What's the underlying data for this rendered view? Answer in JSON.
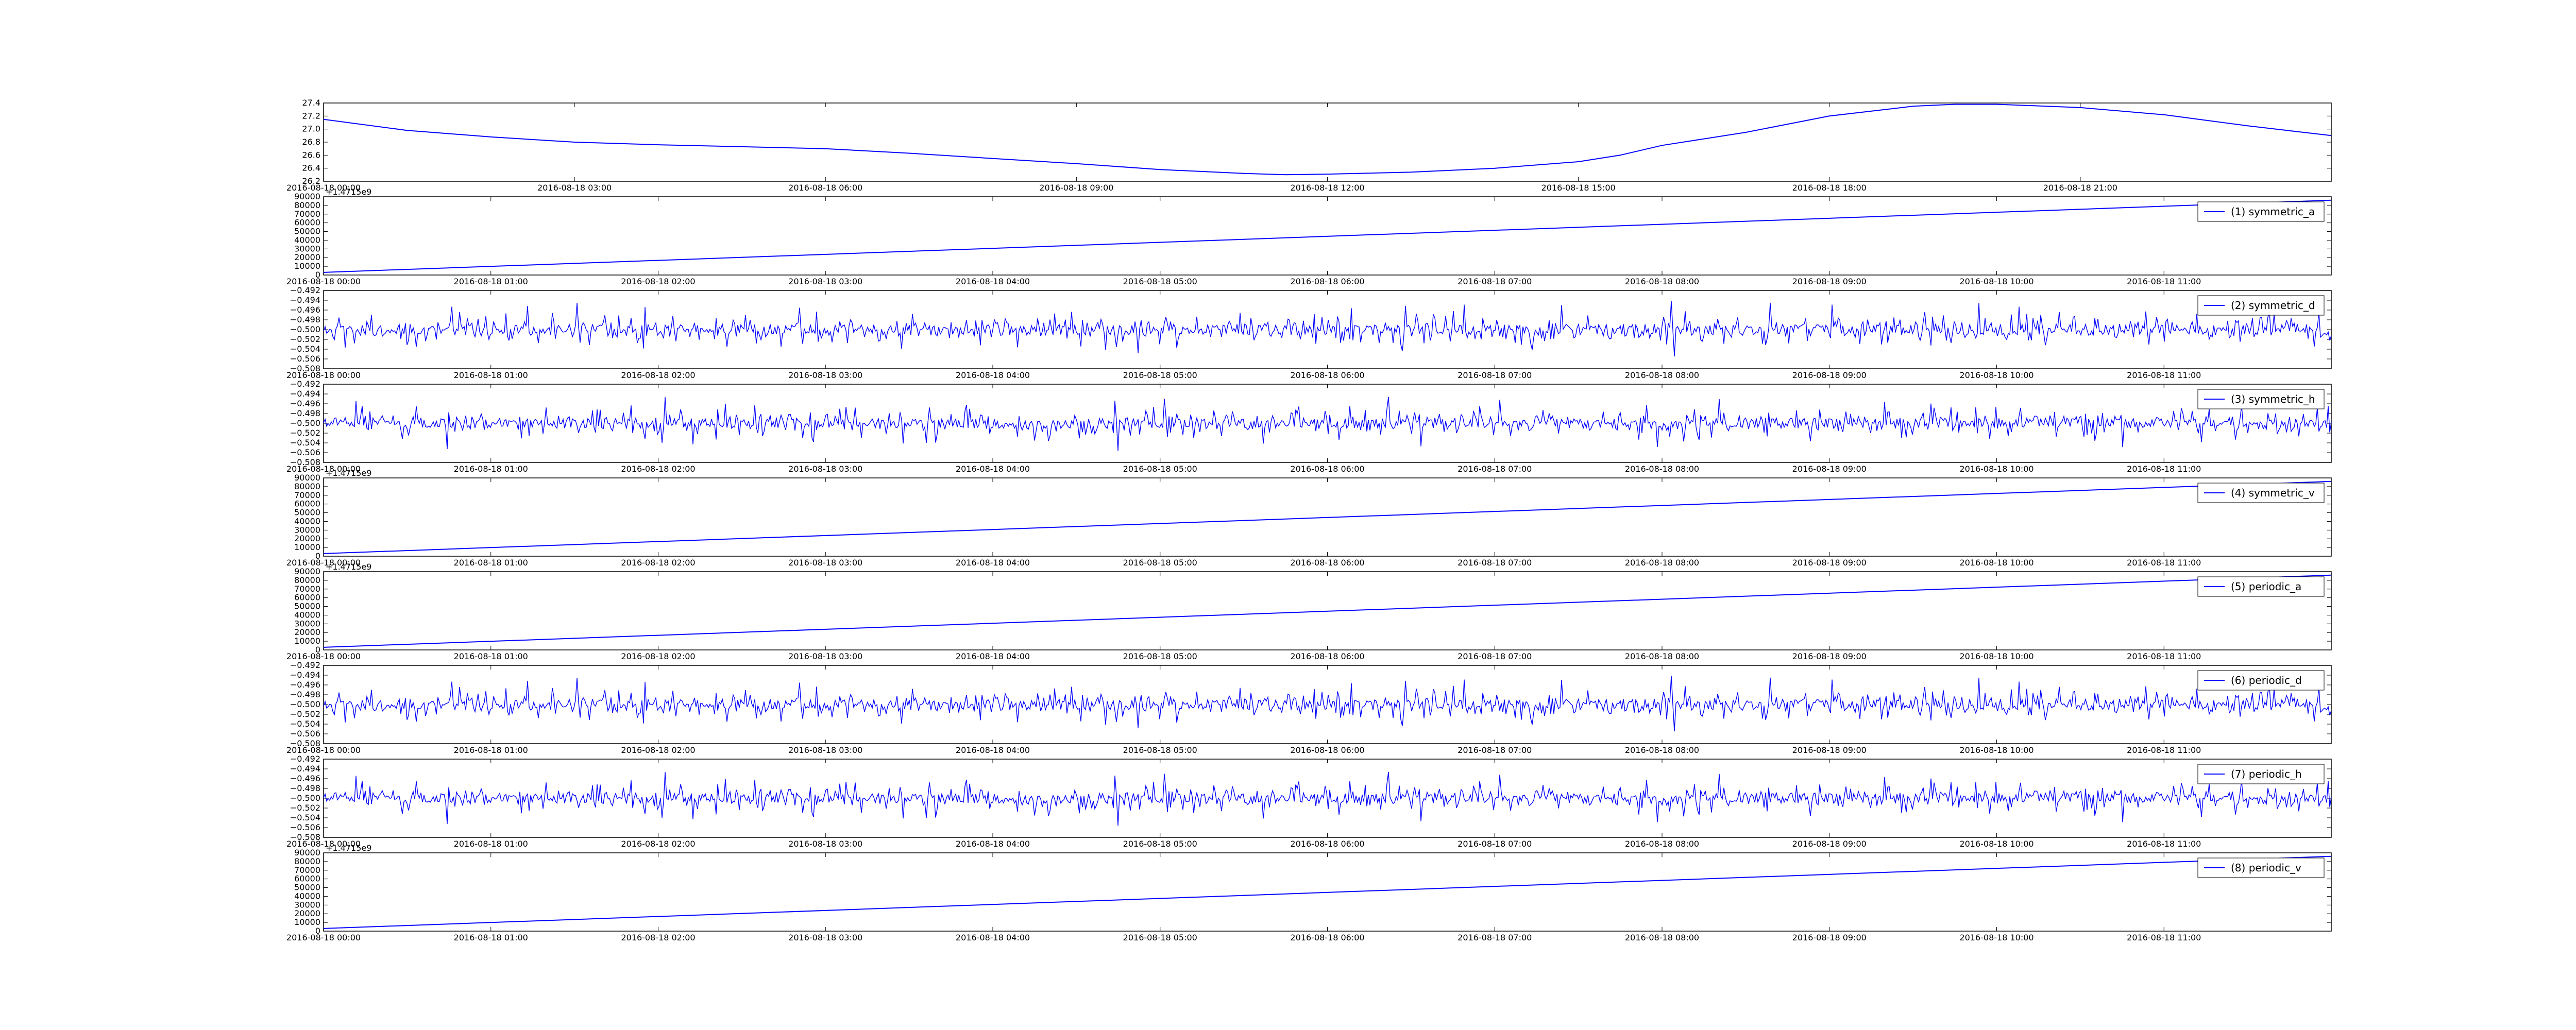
{
  "figure": {
    "background": "#ffffff",
    "line_color": "#0000ff"
  },
  "chart_data": [
    {
      "id": "temp",
      "type": "line",
      "legend": "",
      "ylim": [
        26.2,
        27.4
      ],
      "yticks": [
        "26.2",
        "26.4",
        "26.6",
        "26.8",
        "27.0",
        "27.2",
        "27.4"
      ],
      "offset_label": "",
      "xticks": [
        "2016-08-18 00:00",
        "2016-08-18 03:00",
        "2016-08-18 06:00",
        "2016-08-18 09:00",
        "2016-08-18 12:00",
        "2016-08-18 15:00",
        "2016-08-18 18:00",
        "2016-08-18 21:00"
      ],
      "xrange_hours": [
        0,
        24
      ],
      "series": [
        {
          "x": [
            0,
            1,
            2,
            3,
            4,
            5,
            6,
            7,
            8,
            9,
            10,
            11,
            11.5,
            12,
            13,
            14,
            15,
            15.5,
            16,
            17,
            18,
            19,
            19.5,
            20,
            21,
            22,
            23,
            24
          ],
          "y": [
            27.15,
            26.98,
            26.88,
            26.8,
            26.76,
            26.73,
            26.7,
            26.63,
            26.55,
            26.47,
            26.38,
            26.32,
            26.3,
            26.31,
            26.34,
            26.4,
            26.5,
            26.6,
            26.75,
            26.95,
            27.2,
            27.35,
            27.38,
            27.38,
            27.33,
            27.22,
            27.05,
            26.9
          ]
        }
      ]
    },
    {
      "id": "sym_a",
      "type": "line",
      "legend": "(1) symmetric_a",
      "ylim": [
        0,
        90000
      ],
      "yticks": [
        "0",
        "10000",
        "20000",
        "30000",
        "40000",
        "50000",
        "60000",
        "70000",
        "80000",
        "90000"
      ],
      "offset_label": "+1.4715e9",
      "xticks": [
        "2016-08-18 00:00",
        "2016-08-18 01:00",
        "2016-08-18 02:00",
        "2016-08-18 03:00",
        "2016-08-18 04:00",
        "2016-08-18 05:00",
        "2016-08-18 06:00",
        "2016-08-18 07:00",
        "2016-08-18 08:00",
        "2016-08-18 09:00",
        "2016-08-18 10:00",
        "2016-08-18 11:00"
      ],
      "xrange_hours": [
        0,
        12
      ],
      "series": [
        {
          "x": [
            0,
            12
          ],
          "y": [
            3000,
            86000
          ]
        }
      ]
    },
    {
      "id": "sym_d",
      "type": "line",
      "legend": "(2) symmetric_d",
      "ylim": [
        -0.508,
        -0.492
      ],
      "yticks": [
        "−0.508",
        "−0.506",
        "−0.504",
        "−0.502",
        "−0.500",
        "−0.498",
        "−0.496",
        "−0.494",
        "−0.492"
      ],
      "offset_label": "",
      "xticks": [
        "2016-08-18 00:00",
        "2016-08-18 01:00",
        "2016-08-18 02:00",
        "2016-08-18 03:00",
        "2016-08-18 04:00",
        "2016-08-18 05:00",
        "2016-08-18 06:00",
        "2016-08-18 07:00",
        "2016-08-18 08:00",
        "2016-08-18 09:00",
        "2016-08-18 10:00",
        "2016-08-18 11:00"
      ],
      "xrange_hours": [
        0,
        12
      ],
      "noise": {
        "center": -0.5,
        "amplitude": 0.006,
        "seed": 11,
        "points": 1300
      }
    },
    {
      "id": "sym_h",
      "type": "line",
      "legend": "(3) symmetric_h",
      "ylim": [
        -0.508,
        -0.492
      ],
      "yticks": [
        "−0.508",
        "−0.506",
        "−0.504",
        "−0.502",
        "−0.500",
        "−0.498",
        "−0.496",
        "−0.494",
        "−0.492"
      ],
      "offset_label": "",
      "xticks": [
        "2016-08-18 00:00",
        "2016-08-18 01:00",
        "2016-08-18 02:00",
        "2016-08-18 03:00",
        "2016-08-18 04:00",
        "2016-08-18 05:00",
        "2016-08-18 06:00",
        "2016-08-18 07:00",
        "2016-08-18 08:00",
        "2016-08-18 09:00",
        "2016-08-18 10:00",
        "2016-08-18 11:00"
      ],
      "xrange_hours": [
        0,
        12
      ],
      "noise": {
        "center": -0.5,
        "amplitude": 0.006,
        "seed": 23,
        "points": 1300
      }
    },
    {
      "id": "sym_v",
      "type": "line",
      "legend": "(4) symmetric_v",
      "ylim": [
        0,
        90000
      ],
      "yticks": [
        "0",
        "10000",
        "20000",
        "30000",
        "40000",
        "50000",
        "60000",
        "70000",
        "80000",
        "90000"
      ],
      "offset_label": "+1.4715e9",
      "xticks": [
        "2016-08-18 00:00",
        "2016-08-18 01:00",
        "2016-08-18 02:00",
        "2016-08-18 03:00",
        "2016-08-18 04:00",
        "2016-08-18 05:00",
        "2016-08-18 06:00",
        "2016-08-18 07:00",
        "2016-08-18 08:00",
        "2016-08-18 09:00",
        "2016-08-18 10:00",
        "2016-08-18 11:00"
      ],
      "xrange_hours": [
        0,
        12
      ],
      "series": [
        {
          "x": [
            0,
            12
          ],
          "y": [
            3000,
            86000
          ]
        }
      ]
    },
    {
      "id": "per_a",
      "type": "line",
      "legend": "(5) periodic_a",
      "ylim": [
        0,
        90000
      ],
      "yticks": [
        "0",
        "10000",
        "20000",
        "30000",
        "40000",
        "50000",
        "60000",
        "70000",
        "80000",
        "90000"
      ],
      "offset_label": "+1.4715e9",
      "xticks": [
        "2016-08-18 00:00",
        "2016-08-18 01:00",
        "2016-08-18 02:00",
        "2016-08-18 03:00",
        "2016-08-18 04:00",
        "2016-08-18 05:00",
        "2016-08-18 06:00",
        "2016-08-18 07:00",
        "2016-08-18 08:00",
        "2016-08-18 09:00",
        "2016-08-18 10:00",
        "2016-08-18 11:00"
      ],
      "xrange_hours": [
        0,
        12
      ],
      "series": [
        {
          "x": [
            0,
            12
          ],
          "y": [
            3000,
            86000
          ]
        }
      ]
    },
    {
      "id": "per_d",
      "type": "line",
      "legend": "(6) periodic_d",
      "ylim": [
        -0.508,
        -0.492
      ],
      "yticks": [
        "−0.508",
        "−0.506",
        "−0.504",
        "−0.502",
        "−0.500",
        "−0.498",
        "−0.496",
        "−0.494",
        "−0.492"
      ],
      "offset_label": "",
      "xticks": [
        "2016-08-18 00:00",
        "2016-08-18 01:00",
        "2016-08-18 02:00",
        "2016-08-18 03:00",
        "2016-08-18 04:00",
        "2016-08-18 05:00",
        "2016-08-18 06:00",
        "2016-08-18 07:00",
        "2016-08-18 08:00",
        "2016-08-18 09:00",
        "2016-08-18 10:00",
        "2016-08-18 11:00"
      ],
      "xrange_hours": [
        0,
        12
      ],
      "noise": {
        "center": -0.5,
        "amplitude": 0.006,
        "seed": 11,
        "points": 1300
      }
    },
    {
      "id": "per_h",
      "type": "line",
      "legend": "(7) periodic_h",
      "ylim": [
        -0.508,
        -0.492
      ],
      "yticks": [
        "−0.508",
        "−0.506",
        "−0.504",
        "−0.502",
        "−0.500",
        "−0.498",
        "−0.496",
        "−0.494",
        "−0.492"
      ],
      "offset_label": "",
      "xticks": [
        "2016-08-18 00:00",
        "2016-08-18 01:00",
        "2016-08-18 02:00",
        "2016-08-18 03:00",
        "2016-08-18 04:00",
        "2016-08-18 05:00",
        "2016-08-18 06:00",
        "2016-08-18 07:00",
        "2016-08-18 08:00",
        "2016-08-18 09:00",
        "2016-08-18 10:00",
        "2016-08-18 11:00"
      ],
      "xrange_hours": [
        0,
        12
      ],
      "noise": {
        "center": -0.5,
        "amplitude": 0.006,
        "seed": 23,
        "points": 1300
      }
    },
    {
      "id": "per_v",
      "type": "line",
      "legend": "(8) periodic_v",
      "ylim": [
        0,
        90000
      ],
      "yticks": [
        "0",
        "10000",
        "20000",
        "30000",
        "40000",
        "50000",
        "60000",
        "70000",
        "80000",
        "90000"
      ],
      "offset_label": "+1.4715e9",
      "xticks": [
        "2016-08-18 00:00",
        "2016-08-18 01:00",
        "2016-08-18 02:00",
        "2016-08-18 03:00",
        "2016-08-18 04:00",
        "2016-08-18 05:00",
        "2016-08-18 06:00",
        "2016-08-18 07:00",
        "2016-08-18 08:00",
        "2016-08-18 09:00",
        "2016-08-18 10:00",
        "2016-08-18 11:00"
      ],
      "xrange_hours": [
        0,
        12
      ],
      "series": [
        {
          "x": [
            0,
            12
          ],
          "y": [
            3000,
            86000
          ]
        }
      ]
    }
  ]
}
